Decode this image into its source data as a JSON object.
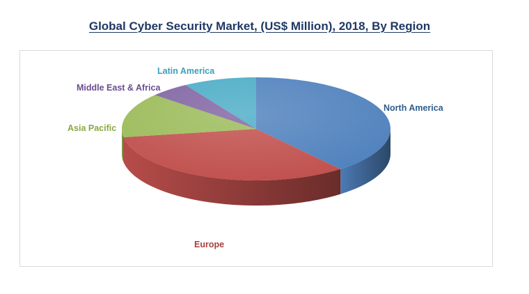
{
  "title": "Global Cyber Security Market, (US$ Million), 2018, By Region",
  "chart_data": {
    "type": "pie",
    "title": "Global Cyber Security Market, (US$ Million), 2018, By Region",
    "style": "3d",
    "legend": "none",
    "categories": [
      "North America",
      "Europe",
      "Asia Pacific",
      "Middle East & Africa",
      "Latin America"
    ],
    "values": [
      39.2,
      33.2,
      14.0,
      4.8,
      8.8
    ],
    "colors": [
      "#4f81bd",
      "#c0504d",
      "#9bbb59",
      "#8064a2",
      "#4bacc6"
    ],
    "label_colors": [
      "#2e5c8a",
      "#a8403d",
      "#8aa844",
      "#6b4c91",
      "#3a9fbd"
    ]
  }
}
